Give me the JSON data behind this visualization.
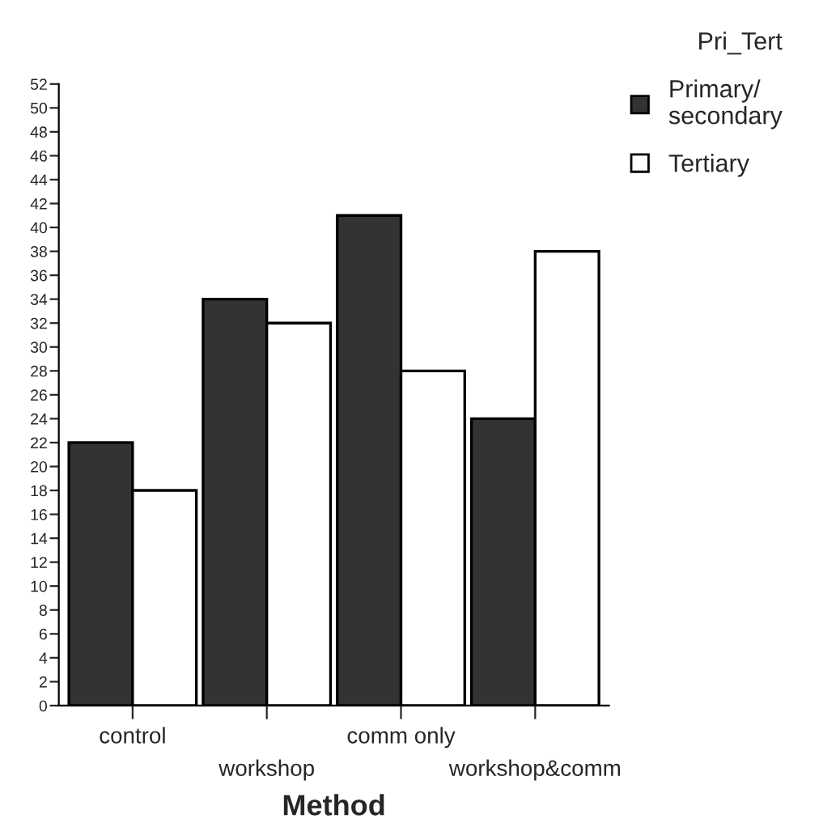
{
  "chart_data": {
    "type": "bar",
    "xlabel": "Method",
    "legend_title": "Pri_Tert",
    "categories": [
      "control",
      "workshop",
      "comm only",
      "workshop&comm"
    ],
    "series": [
      {
        "name": "Primary/\nsecondary",
        "color": "#333333",
        "values": [
          22,
          34,
          41,
          24
        ]
      },
      {
        "name": "Tertiary",
        "color": "#ffffff",
        "values": [
          18,
          32,
          28,
          38
        ]
      }
    ],
    "ylim": [
      0,
      52
    ],
    "yticks": [
      0,
      2,
      4,
      6,
      8,
      10,
      12,
      14,
      16,
      18,
      20,
      22,
      24,
      26,
      28,
      30,
      32,
      34,
      36,
      38,
      40,
      42,
      44,
      46,
      48,
      50,
      52
    ],
    "grid": false,
    "legend": "top right"
  }
}
